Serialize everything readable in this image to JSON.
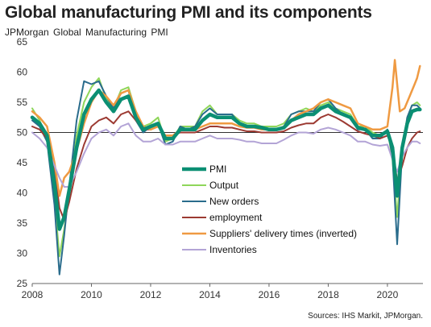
{
  "header": {
    "title": "Global manufacturing PMI and its components",
    "subtitle": "JPMorgan  Global  Manufacturing  PMI",
    "source": "Sources: IHS Markit, JPMorgan."
  },
  "chart_data": {
    "type": "line",
    "title": "Global manufacturing PMI and its components",
    "subtitle": "JPMorgan  Global  Manufacturing  PMI",
    "xlabel": "",
    "ylabel": "",
    "xlim": [
      2008,
      2021.2
    ],
    "ylim": [
      25,
      65
    ],
    "x_ticks": [
      "2008",
      "2010",
      "2012",
      "2014",
      "2016",
      "2018",
      "2020"
    ],
    "y_ticks": [
      "25",
      "30",
      "35",
      "40",
      "45",
      "50",
      "55",
      "60",
      "65"
    ],
    "reference_line": 50,
    "grid": false,
    "legend_position": "center",
    "series": [
      {
        "name": "PMI",
        "color": "#0b8f73",
        "width": 4.5,
        "x": [
          2008.0,
          2008.25,
          2008.5,
          2008.75,
          2008.92,
          2009.08,
          2009.25,
          2009.5,
          2009.75,
          2010.0,
          2010.25,
          2010.5,
          2010.75,
          2011.0,
          2011.25,
          2011.5,
          2011.75,
          2012.0,
          2012.25,
          2012.5,
          2012.75,
          2013.0,
          2013.25,
          2013.5,
          2013.75,
          2014.0,
          2014.25,
          2014.5,
          2014.75,
          2015.0,
          2015.25,
          2015.5,
          2015.75,
          2016.0,
          2016.25,
          2016.5,
          2016.75,
          2017.0,
          2017.25,
          2017.5,
          2017.75,
          2018.0,
          2018.25,
          2018.5,
          2018.75,
          2019.0,
          2019.25,
          2019.5,
          2019.75,
          2020.0,
          2020.17,
          2020.33,
          2020.5,
          2020.67,
          2020.83,
          2021.0,
          2021.1
        ],
        "y": [
          52.5,
          51.5,
          49.5,
          41.5,
          34.0,
          36.0,
          40.5,
          47.5,
          53.0,
          55.5,
          57.0,
          55.0,
          53.5,
          55.5,
          56.0,
          52.5,
          50.5,
          51.0,
          51.5,
          49.0,
          49.0,
          50.5,
          50.5,
          50.5,
          52.0,
          53.0,
          52.5,
          52.5,
          52.5,
          51.5,
          51.0,
          51.0,
          50.8,
          50.5,
          50.5,
          50.8,
          52.0,
          52.5,
          53.0,
          53.0,
          54.0,
          54.5,
          53.5,
          53.0,
          52.5,
          50.8,
          50.5,
          49.5,
          49.5,
          50.2,
          47.5,
          39.5,
          47.5,
          51.5,
          53.5,
          53.8,
          53.8
        ]
      },
      {
        "name": "Output",
        "color": "#8fd65a",
        "width": 2,
        "x": [
          2008.0,
          2008.25,
          2008.5,
          2008.75,
          2008.92,
          2009.08,
          2009.25,
          2009.5,
          2009.75,
          2010.0,
          2010.25,
          2010.5,
          2010.75,
          2011.0,
          2011.25,
          2011.5,
          2011.75,
          2012.0,
          2012.25,
          2012.5,
          2012.75,
          2013.0,
          2013.25,
          2013.5,
          2013.75,
          2014.0,
          2014.25,
          2014.5,
          2014.75,
          2015.0,
          2015.25,
          2015.5,
          2015.75,
          2016.0,
          2016.25,
          2016.5,
          2016.75,
          2017.0,
          2017.25,
          2017.5,
          2017.75,
          2018.0,
          2018.25,
          2018.5,
          2018.75,
          2019.0,
          2019.25,
          2019.5,
          2019.75,
          2020.0,
          2020.17,
          2020.33,
          2020.5,
          2020.67,
          2020.83,
          2021.0,
          2021.1
        ],
        "y": [
          54.0,
          52.0,
          49.0,
          39.0,
          29.5,
          34.0,
          40.0,
          49.5,
          55.0,
          57.5,
          59.0,
          55.5,
          54.0,
          57.0,
          57.5,
          53.5,
          51.0,
          51.5,
          52.5,
          48.5,
          49.0,
          51.0,
          51.0,
          51.0,
          53.5,
          54.5,
          53.0,
          53.0,
          53.0,
          52.0,
          51.5,
          51.5,
          51.0,
          51.0,
          51.0,
          51.5,
          53.0,
          53.5,
          54.0,
          53.5,
          54.5,
          55.0,
          54.0,
          53.5,
          53.0,
          51.0,
          51.0,
          50.0,
          49.5,
          50.5,
          45.5,
          36.0,
          47.5,
          52.5,
          54.5,
          55.0,
          54.5
        ]
      },
      {
        "name": "New orders",
        "color": "#2a6c8c",
        "width": 2,
        "x": [
          2008.0,
          2008.25,
          2008.5,
          2008.75,
          2008.92,
          2009.08,
          2009.25,
          2009.5,
          2009.75,
          2010.0,
          2010.25,
          2010.5,
          2010.75,
          2011.0,
          2011.25,
          2011.5,
          2011.75,
          2012.0,
          2012.25,
          2012.5,
          2012.75,
          2013.0,
          2013.25,
          2013.5,
          2013.75,
          2014.0,
          2014.25,
          2014.5,
          2014.75,
          2015.0,
          2015.25,
          2015.5,
          2015.75,
          2016.0,
          2016.25,
          2016.5,
          2016.75,
          2017.0,
          2017.25,
          2017.5,
          2017.75,
          2018.0,
          2018.25,
          2018.5,
          2018.75,
          2019.0,
          2019.25,
          2019.5,
          2019.75,
          2020.0,
          2020.17,
          2020.33,
          2020.5,
          2020.67,
          2020.83,
          2021.0,
          2021.1
        ],
        "y": [
          52.0,
          51.0,
          48.5,
          38.0,
          26.5,
          33.0,
          41.0,
          52.0,
          58.5,
          58.0,
          58.5,
          56.0,
          54.0,
          56.5,
          57.0,
          52.0,
          50.0,
          51.0,
          51.5,
          48.0,
          48.5,
          51.0,
          50.5,
          51.0,
          53.0,
          54.0,
          53.0,
          53.0,
          53.0,
          51.5,
          51.0,
          51.0,
          51.0,
          50.5,
          50.5,
          51.0,
          53.0,
          53.5,
          53.5,
          53.5,
          55.0,
          55.5,
          54.0,
          53.0,
          52.5,
          50.5,
          50.5,
          49.0,
          49.0,
          50.5,
          46.0,
          31.5,
          47.0,
          52.5,
          54.5,
          54.5,
          54.0
        ]
      },
      {
        "name": "employment",
        "color": "#9c3a32",
        "width": 2,
        "x": [
          2008.0,
          2008.25,
          2008.5,
          2008.75,
          2008.92,
          2009.08,
          2009.25,
          2009.5,
          2009.75,
          2010.0,
          2010.25,
          2010.5,
          2010.75,
          2011.0,
          2011.25,
          2011.5,
          2011.75,
          2012.0,
          2012.25,
          2012.5,
          2012.75,
          2013.0,
          2013.25,
          2013.5,
          2013.75,
          2014.0,
          2014.25,
          2014.5,
          2014.75,
          2015.0,
          2015.25,
          2015.5,
          2015.75,
          2016.0,
          2016.25,
          2016.5,
          2016.75,
          2017.0,
          2017.25,
          2017.5,
          2017.75,
          2018.0,
          2018.25,
          2018.5,
          2018.75,
          2019.0,
          2019.25,
          2019.5,
          2019.75,
          2020.0,
          2020.17,
          2020.33,
          2020.5,
          2020.67,
          2020.83,
          2021.0,
          2021.1
        ],
        "y": [
          51.0,
          50.5,
          49.0,
          44.0,
          37.5,
          35.5,
          38.5,
          44.0,
          48.0,
          51.0,
          52.0,
          52.5,
          51.5,
          53.0,
          53.5,
          52.0,
          50.5,
          50.5,
          51.0,
          49.5,
          49.5,
          50.0,
          50.0,
          50.0,
          50.5,
          51.0,
          51.0,
          50.8,
          50.8,
          50.5,
          50.2,
          50.2,
          50.0,
          50.0,
          50.0,
          50.2,
          50.8,
          51.2,
          51.5,
          51.5,
          52.5,
          53.0,
          52.5,
          51.8,
          51.0,
          50.2,
          49.8,
          49.5,
          49.0,
          49.5,
          47.5,
          42.0,
          44.5,
          47.5,
          49.0,
          50.0,
          50.2
        ]
      },
      {
        "name": "Suppliers' delivery times (inverted)",
        "color": "#ef9a42",
        "width": 2.5,
        "x": [
          2008.0,
          2008.25,
          2008.5,
          2008.75,
          2008.92,
          2009.08,
          2009.25,
          2009.5,
          2009.75,
          2010.0,
          2010.25,
          2010.5,
          2010.75,
          2011.0,
          2011.25,
          2011.5,
          2011.75,
          2012.0,
          2012.25,
          2012.5,
          2012.75,
          2013.0,
          2013.25,
          2013.5,
          2013.75,
          2014.0,
          2014.25,
          2014.5,
          2014.75,
          2015.0,
          2015.25,
          2015.5,
          2015.75,
          2016.0,
          2016.25,
          2016.5,
          2016.75,
          2017.0,
          2017.25,
          2017.5,
          2017.75,
          2018.0,
          2018.25,
          2018.5,
          2018.75,
          2019.0,
          2019.25,
          2019.5,
          2019.75,
          2020.0,
          2020.17,
          2020.25,
          2020.33,
          2020.42,
          2020.58,
          2020.75,
          2020.92,
          2021.0,
          2021.1
        ],
        "y": [
          53.5,
          52.5,
          51.0,
          45.0,
          39.5,
          42.5,
          43.5,
          47.0,
          51.5,
          55.0,
          57.0,
          56.0,
          54.5,
          56.5,
          57.0,
          53.5,
          51.0,
          50.5,
          51.0,
          49.5,
          49.5,
          50.5,
          50.5,
          50.5,
          51.0,
          51.5,
          51.5,
          51.5,
          51.5,
          51.0,
          50.8,
          50.8,
          50.5,
          50.5,
          50.5,
          51.0,
          52.0,
          53.0,
          53.5,
          54.0,
          55.0,
          55.5,
          55.0,
          54.5,
          54.0,
          51.5,
          51.0,
          50.5,
          50.5,
          51.0,
          57.5,
          62.0,
          58.0,
          53.5,
          54.0,
          56.0,
          58.0,
          59.0,
          61.0
        ]
      },
      {
        "name": "Inventories",
        "color": "#b3a4d6",
        "width": 2,
        "x": [
          2008.0,
          2008.25,
          2008.5,
          2008.75,
          2008.92,
          2009.08,
          2009.25,
          2009.5,
          2009.75,
          2010.0,
          2010.25,
          2010.5,
          2010.75,
          2011.0,
          2011.25,
          2011.5,
          2011.75,
          2012.0,
          2012.25,
          2012.5,
          2012.75,
          2013.0,
          2013.25,
          2013.5,
          2013.75,
          2014.0,
          2014.25,
          2014.5,
          2014.75,
          2015.0,
          2015.25,
          2015.5,
          2015.75,
          2016.0,
          2016.25,
          2016.5,
          2016.75,
          2017.0,
          2017.25,
          2017.5,
          2017.75,
          2018.0,
          2018.25,
          2018.5,
          2018.75,
          2019.0,
          2019.25,
          2019.5,
          2019.75,
          2020.0,
          2020.17,
          2020.33,
          2020.5,
          2020.67,
          2020.83,
          2021.0,
          2021.1
        ],
        "y": [
          50.0,
          49.0,
          47.5,
          44.5,
          42.5,
          41.0,
          41.0,
          43.5,
          46.5,
          49.0,
          50.0,
          50.5,
          49.5,
          51.0,
          51.5,
          49.5,
          48.5,
          48.5,
          49.0,
          48.0,
          48.0,
          48.5,
          48.5,
          48.5,
          49.0,
          49.5,
          49.0,
          49.0,
          49.0,
          48.8,
          48.5,
          48.5,
          48.2,
          48.2,
          48.2,
          48.8,
          49.5,
          50.0,
          50.0,
          49.8,
          50.5,
          50.8,
          50.5,
          50.0,
          49.5,
          48.5,
          48.5,
          48.0,
          47.8,
          48.0,
          45.5,
          43.5,
          46.0,
          47.5,
          48.5,
          48.5,
          48.2
        ]
      }
    ]
  }
}
